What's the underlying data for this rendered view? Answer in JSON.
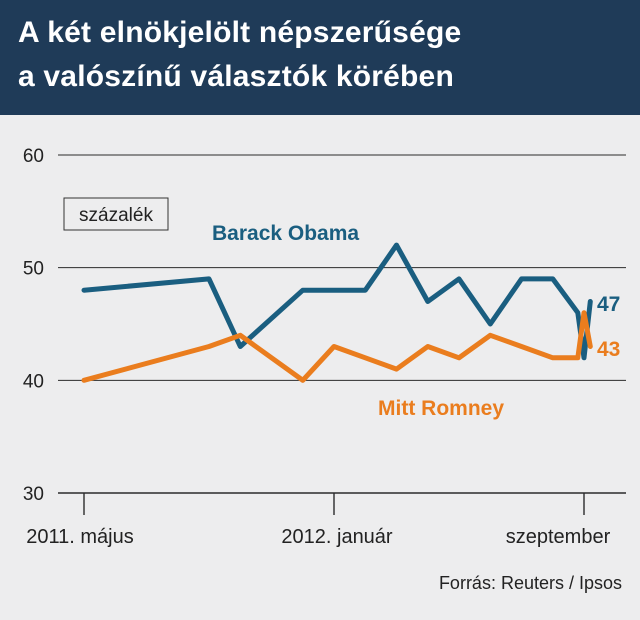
{
  "title_line1": "A két elnökjelölt népszerűsége",
  "title_line2": "a valószínű választók körében",
  "source": "Forrás: Reuters / Ipsos",
  "colors": {
    "obama": "#1a5e80",
    "romney": "#ea7d1e",
    "header_bg": "#1f3b58",
    "background": "#ededee"
  },
  "chart_data": {
    "type": "line",
    "title": "A két elnökjelölt népszerűsége a valószínű választók körében",
    "unit_label": "százalék",
    "ylim": [
      30,
      60
    ],
    "yticks": [
      30,
      40,
      50,
      60
    ],
    "xlim": [
      0,
      16.5
    ],
    "xtick_positions": [
      0,
      8,
      16
    ],
    "xtick_labels": [
      "2011. május",
      "2012. január",
      "szeptember"
    ],
    "grid": "horizontal",
    "series": [
      {
        "name": "Barack Obama",
        "end_label": "47",
        "x": [
          0,
          4,
          5,
          7,
          8,
          9,
          10,
          11,
          12,
          13,
          14,
          15,
          15.8,
          16,
          16.2
        ],
        "y": [
          48,
          49,
          43,
          48,
          48,
          48,
          52,
          47,
          49,
          45,
          49,
          49,
          46,
          42,
          47
        ]
      },
      {
        "name": "Mitt Romney",
        "end_label": "43",
        "x": [
          0,
          4,
          5,
          7,
          8,
          9,
          10,
          11,
          12,
          13,
          14,
          15,
          15.8,
          16,
          16.2
        ],
        "y": [
          40,
          43,
          44,
          40,
          43,
          42,
          41,
          43,
          42,
          44,
          43,
          42,
          42,
          46,
          43
        ]
      }
    ]
  }
}
